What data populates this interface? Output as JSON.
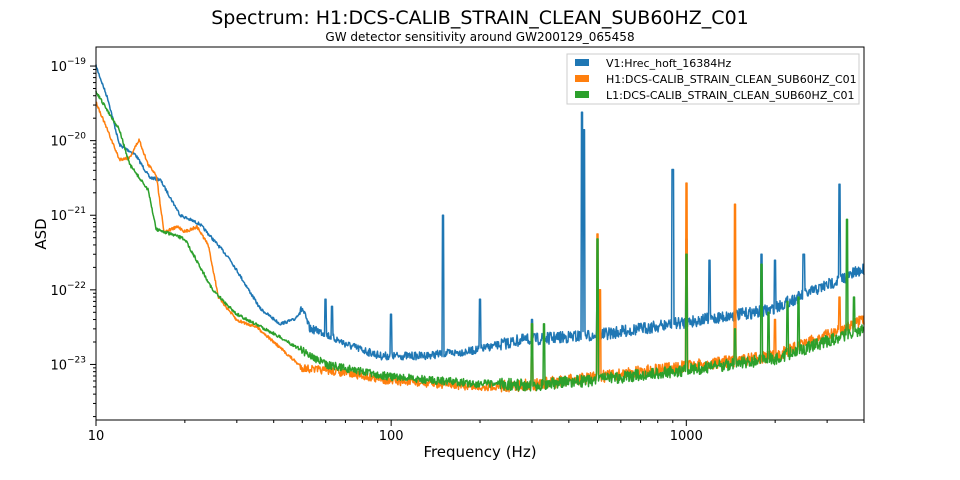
{
  "chart_data": {
    "type": "line",
    "title": "Spectrum: H1:DCS-CALIB_STRAIN_CLEAN_SUB60HZ_C01",
    "subtitle": "GW detector sensitivity around GW200129_065458",
    "xlabel": "Frequency (Hz)",
    "ylabel": "ASD",
    "xscale": "log",
    "yscale": "log",
    "xlim": [
      10,
      4000
    ],
    "ylim": [
      1.8e-24,
      1.8e-19
    ],
    "grid": false,
    "legend_position": "top-right",
    "x_ticks": [
      {
        "value": 10,
        "label": "10"
      },
      {
        "value": 100,
        "label": "100"
      },
      {
        "value": 1000,
        "label": "1000"
      }
    ],
    "y_ticks": [
      {
        "value": 1e-19,
        "base": "10",
        "exp": "−19"
      },
      {
        "value": 1e-20,
        "base": "10",
        "exp": "−20"
      },
      {
        "value": 1e-21,
        "base": "10",
        "exp": "−21"
      },
      {
        "value": 1e-22,
        "base": "10",
        "exp": "−22"
      },
      {
        "value": 1e-23,
        "base": "10",
        "exp": "−23"
      }
    ],
    "series": [
      {
        "name": "V1:Hrec_hoft_16384Hz",
        "color": "#1f77b4",
        "points": [
          [
            10,
            1e-19
          ],
          [
            11,
            3.5e-20
          ],
          [
            12,
            8.8e-21
          ],
          [
            13.6,
            6.5e-21
          ],
          [
            15.2,
            3.2e-21
          ],
          [
            16.5,
            3e-21
          ],
          [
            19.3,
            1e-21
          ],
          [
            22.5,
            7.6e-22
          ],
          [
            28.4,
            2.6e-22
          ],
          [
            36,
            5.6e-23
          ],
          [
            42,
            3.5e-23
          ],
          [
            47,
            4e-23
          ],
          [
            50,
            5.6e-23
          ],
          [
            53,
            3e-23
          ],
          [
            57,
            2.8e-23
          ],
          [
            72,
            1.8e-23
          ],
          [
            92,
            1.3e-23
          ],
          [
            125,
            1.3e-23
          ],
          [
            185,
            1.5e-23
          ],
          [
            272,
            2.1e-23
          ],
          [
            510,
            2.5e-23
          ],
          [
            1000,
            3.7e-23
          ],
          [
            1900,
            5.3e-23
          ],
          [
            4000,
            1.9e-22
          ]
        ],
        "peaks": [
          [
            60,
            7.5e-23
          ],
          [
            63,
            6e-23
          ],
          [
            100,
            4.7e-23
          ],
          [
            150,
            1e-21
          ],
          [
            200,
            7.5e-23
          ],
          [
            300,
            4e-23
          ],
          [
            443,
            2.4e-20
          ],
          [
            450,
            1.4e-20
          ],
          [
            500,
            1e-22
          ],
          [
            900,
            4.1e-21
          ],
          [
            1000,
            4.8e-22
          ],
          [
            1200,
            2.5e-22
          ],
          [
            1800,
            3e-22
          ],
          [
            2000,
            2.5e-22
          ],
          [
            2500,
            3e-22
          ],
          [
            3300,
            2.6e-21
          ]
        ]
      },
      {
        "name": "H1:DCS-CALIB_STRAIN_CLEAN_SUB60HZ_C01",
        "color": "#ff7f0e",
        "points": [
          [
            10,
            3.3e-20
          ],
          [
            12,
            5.6e-21
          ],
          [
            13,
            5.9e-21
          ],
          [
            14,
            1.03e-20
          ],
          [
            15,
            4.8e-21
          ],
          [
            16,
            3.5e-21
          ],
          [
            17,
            6e-22
          ],
          [
            19,
            7e-22
          ],
          [
            20,
            6e-22
          ],
          [
            22,
            7e-22
          ],
          [
            24,
            4e-22
          ],
          [
            26,
            8e-23
          ],
          [
            30,
            3.9e-23
          ],
          [
            35,
            3.2e-23
          ],
          [
            40,
            2e-23
          ],
          [
            50,
            9e-24
          ],
          [
            70,
            7.7e-24
          ],
          [
            100,
            6e-24
          ],
          [
            200,
            5e-24
          ],
          [
            300,
            5.3e-24
          ],
          [
            500,
            6.8e-24
          ],
          [
            1000,
            9.4e-24
          ],
          [
            2000,
            1.3e-23
          ],
          [
            4000,
            3.9e-23
          ]
        ],
        "peaks": [
          [
            300,
            3.5e-23
          ],
          [
            500,
            5.6e-22
          ],
          [
            510,
            1e-22
          ],
          [
            1000,
            2.7e-21
          ],
          [
            1460,
            1.4e-21
          ],
          [
            2000,
            4e-23
          ],
          [
            3300,
            8e-23
          ]
        ]
      },
      {
        "name": "L1:DCS-CALIB_STRAIN_CLEAN_SUB60HZ_C01",
        "color": "#2ca02c",
        "points": [
          [
            10,
            4.5e-20
          ],
          [
            12,
            1.4e-20
          ],
          [
            13,
            4.8e-21
          ],
          [
            15,
            2.2e-21
          ],
          [
            16,
            6.5e-22
          ],
          [
            20,
            4.8e-22
          ],
          [
            25,
            9.6e-23
          ],
          [
            30,
            4.7e-23
          ],
          [
            40,
            2.6e-23
          ],
          [
            60,
            1e-23
          ],
          [
            100,
            6.8e-24
          ],
          [
            200,
            5.5e-24
          ],
          [
            300,
            5.3e-24
          ],
          [
            500,
            6.2e-24
          ],
          [
            1000,
            8.4e-24
          ],
          [
            2000,
            1.2e-23
          ],
          [
            4000,
            3e-23
          ]
        ],
        "peaks": [
          [
            300,
            3.5e-23
          ],
          [
            330,
            3.5e-23
          ],
          [
            500,
            4.8e-22
          ],
          [
            1000,
            3e-22
          ],
          [
            1460,
            3e-23
          ],
          [
            1800,
            2.2e-22
          ],
          [
            1900,
            5e-23
          ],
          [
            2200,
            7e-23
          ],
          [
            2400,
            8e-23
          ],
          [
            3500,
            8.8e-22
          ],
          [
            3700,
            8e-23
          ]
        ]
      }
    ]
  }
}
